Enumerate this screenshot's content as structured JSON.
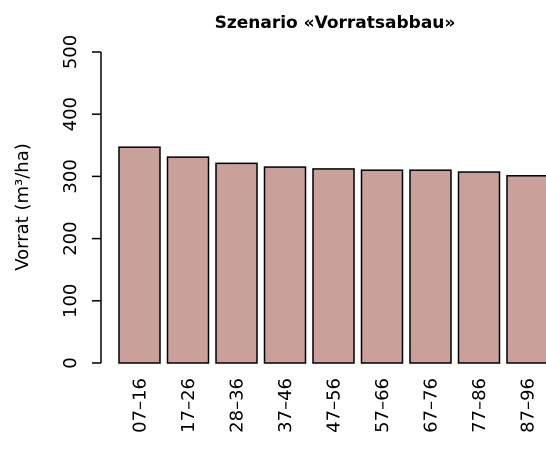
{
  "chart_data": {
    "type": "bar",
    "title": "Szenario «Vorratsabbau»",
    "y_label": "Vorrat (m³/ha)",
    "categories": [
      "07–16",
      "17–26",
      "28–36",
      "37–46",
      "47–56",
      "57–66",
      "67–76",
      "77–86",
      "87–96"
    ],
    "values": [
      347,
      331,
      321,
      315,
      312,
      310,
      310,
      307,
      301
    ],
    "color": "#c9a09a",
    "ylim": [
      0,
      500
    ],
    "yticks": [
      0,
      100,
      200,
      300,
      400,
      500
    ]
  }
}
